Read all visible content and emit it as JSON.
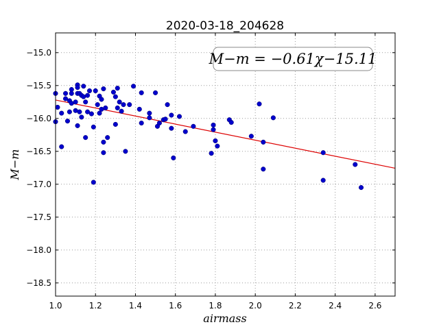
{
  "chart_data": {
    "type": "scatter",
    "title": "2020-03-18_204628",
    "xlabel": "airmass",
    "ylabel": "M−m",
    "xlim": [
      1.0,
      2.7
    ],
    "ylim": [
      -14.7,
      -18.7
    ],
    "y_inverted": true,
    "grid": true,
    "x_ticks": [
      1.0,
      1.2,
      1.4,
      1.6,
      1.8,
      2.0,
      2.2,
      2.4,
      2.6
    ],
    "x_tick_labels": [
      "1.0",
      "1.2",
      "1.4",
      "1.6",
      "1.8",
      "2.0",
      "2.2",
      "2.4",
      "2.6"
    ],
    "y_ticks": [
      -15.0,
      -15.5,
      -16.0,
      -16.5,
      -17.0,
      -17.5,
      -18.0,
      -18.5
    ],
    "y_tick_labels": [
      "−15.0",
      "−15.5",
      "−16.0",
      "−16.5",
      "−17.0",
      "−17.5",
      "−18.0",
      "−18.5"
    ],
    "annotation": "M−m = −0.61χ−15.11",
    "annotation_placement": "top-right",
    "colors": {
      "points": "#0000cc",
      "fit": "#dd0000"
    },
    "fit": {
      "slope": -0.61,
      "intercept": -15.11
    },
    "series": [
      {
        "points": [
          [
            1.0,
            -15.62
          ],
          [
            1.0,
            -16.05
          ],
          [
            1.01,
            -15.83
          ],
          [
            1.03,
            -15.92
          ],
          [
            1.03,
            -16.43
          ],
          [
            1.05,
            -15.62
          ],
          [
            1.05,
            -15.7
          ],
          [
            1.06,
            -16.04
          ],
          [
            1.07,
            -15.73
          ],
          [
            1.07,
            -15.9
          ],
          [
            1.08,
            -15.56
          ],
          [
            1.08,
            -15.62
          ],
          [
            1.08,
            -15.77
          ],
          [
            1.1,
            -15.88
          ],
          [
            1.1,
            -15.75
          ],
          [
            1.11,
            -15.49
          ],
          [
            1.11,
            -15.53
          ],
          [
            1.11,
            -15.62
          ],
          [
            1.11,
            -16.11
          ],
          [
            1.12,
            -15.62
          ],
          [
            1.12,
            -15.9
          ],
          [
            1.13,
            -15.98
          ],
          [
            1.13,
            -15.65
          ],
          [
            1.14,
            -15.51
          ],
          [
            1.14,
            -15.67
          ],
          [
            1.15,
            -15.75
          ],
          [
            1.15,
            -16.29
          ],
          [
            1.16,
            -15.9
          ],
          [
            1.16,
            -15.65
          ],
          [
            1.17,
            -15.58
          ],
          [
            1.18,
            -15.93
          ],
          [
            1.19,
            -16.13
          ],
          [
            1.19,
            -16.97
          ],
          [
            1.2,
            -15.58
          ],
          [
            1.21,
            -15.79
          ],
          [
            1.22,
            -15.66
          ],
          [
            1.22,
            -15.92
          ],
          [
            1.23,
            -15.86
          ],
          [
            1.23,
            -15.71
          ],
          [
            1.24,
            -16.52
          ],
          [
            1.24,
            -16.36
          ],
          [
            1.24,
            -15.55
          ],
          [
            1.25,
            -15.84
          ],
          [
            1.26,
            -16.29
          ],
          [
            1.29,
            -15.6
          ],
          [
            1.3,
            -15.67
          ],
          [
            1.3,
            -16.09
          ],
          [
            1.31,
            -15.54
          ],
          [
            1.31,
            -15.84
          ],
          [
            1.32,
            -15.75
          ],
          [
            1.33,
            -15.89
          ],
          [
            1.34,
            -15.79
          ],
          [
            1.35,
            -16.5
          ],
          [
            1.37,
            -15.79
          ],
          [
            1.39,
            -15.51
          ],
          [
            1.42,
            -15.86
          ],
          [
            1.43,
            -16.07
          ],
          [
            1.43,
            -15.61
          ],
          [
            1.47,
            -15.92
          ],
          [
            1.47,
            -15.99
          ],
          [
            1.5,
            -15.61
          ],
          [
            1.51,
            -16.12
          ],
          [
            1.52,
            -16.07
          ],
          [
            1.54,
            -16.02
          ],
          [
            1.55,
            -16.01
          ],
          [
            1.56,
            -15.79
          ],
          [
            1.58,
            -16.15
          ],
          [
            1.58,
            -15.95
          ],
          [
            1.59,
            -16.6
          ],
          [
            1.62,
            -15.97
          ],
          [
            1.65,
            -16.2
          ],
          [
            1.69,
            -16.12
          ],
          [
            1.78,
            -16.53
          ],
          [
            1.79,
            -16.17
          ],
          [
            1.79,
            -16.1
          ],
          [
            1.8,
            -16.34
          ],
          [
            1.81,
            -16.42
          ],
          [
            1.87,
            -16.02
          ],
          [
            1.88,
            -16.06
          ],
          [
            1.98,
            -16.27
          ],
          [
            2.02,
            -15.78
          ],
          [
            2.04,
            -16.36
          ],
          [
            2.04,
            -16.77
          ],
          [
            2.09,
            -15.99
          ],
          [
            2.34,
            -16.94
          ],
          [
            2.34,
            -16.52
          ],
          [
            2.5,
            -16.7
          ],
          [
            2.53,
            -17.05
          ]
        ]
      }
    ]
  }
}
